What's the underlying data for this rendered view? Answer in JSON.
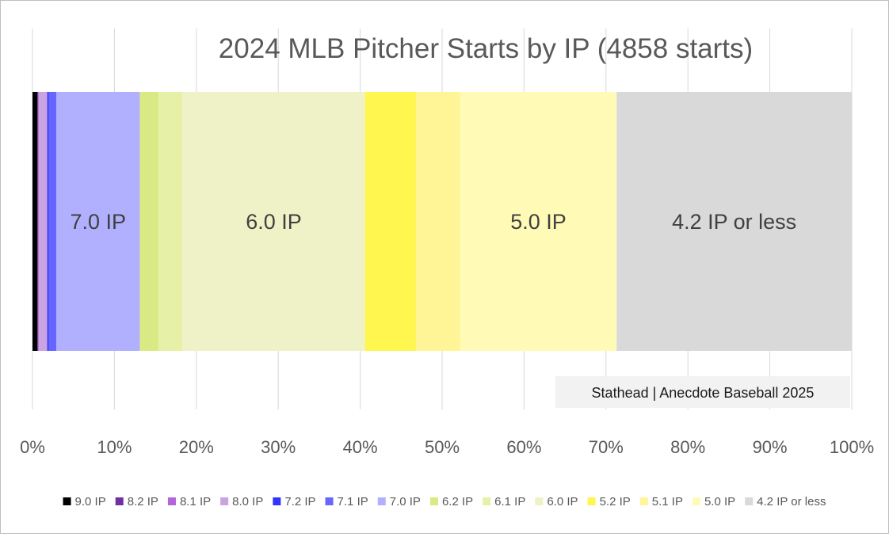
{
  "chart_data": {
    "type": "bar",
    "orientation": "horizontal",
    "stacked": "percent",
    "title": "2024 MLB Pitcher Starts by IP (4858 starts)",
    "annotation": "Stathead | Anecdote Baseball 2025",
    "x_tick_labels": [
      "0%",
      "10%",
      "20%",
      "30%",
      "40%",
      "50%",
      "60%",
      "70%",
      "80%",
      "90%",
      "100%"
    ],
    "xlim": [
      0,
      100
    ],
    "grid": true,
    "legend_position": "bottom",
    "series": [
      {
        "name": "9.0 IP",
        "value": 0.6,
        "color": "#000000"
      },
      {
        "name": "8.2 IP",
        "value": 0.1,
        "color": "#7030a0"
      },
      {
        "name": "8.1 IP",
        "value": 0.1,
        "color": "#b266d9"
      },
      {
        "name": "8.0 IP",
        "value": 1.0,
        "color": "#c9a4e0"
      },
      {
        "name": "7.2 IP",
        "value": 0.2,
        "color": "#3333ff"
      },
      {
        "name": "7.1 IP",
        "value": 0.9,
        "color": "#6666ff"
      },
      {
        "name": "7.0 IP",
        "value": 10.2,
        "color": "#b0b0ff",
        "label": "7.0 IP"
      },
      {
        "name": "6.2 IP",
        "value": 2.3,
        "color": "#d9ea84"
      },
      {
        "name": "6.1 IP",
        "value": 2.9,
        "color": "#e6f0a6"
      },
      {
        "name": "6.0 IP",
        "value": 22.3,
        "color": "#eef2c6",
        "label": "6.0 IP"
      },
      {
        "name": "5.2 IP",
        "value": 6.2,
        "color": "#fff64f"
      },
      {
        "name": "5.1 IP",
        "value": 5.4,
        "color": "#fff596"
      },
      {
        "name": "5.0 IP",
        "value": 19.1,
        "color": "#fffbb6",
        "label": "5.0 IP"
      },
      {
        "name": "4.2 IP or less",
        "value": 28.7,
        "color": "#d9d9d9",
        "label": "4.2 IP or less"
      }
    ]
  }
}
